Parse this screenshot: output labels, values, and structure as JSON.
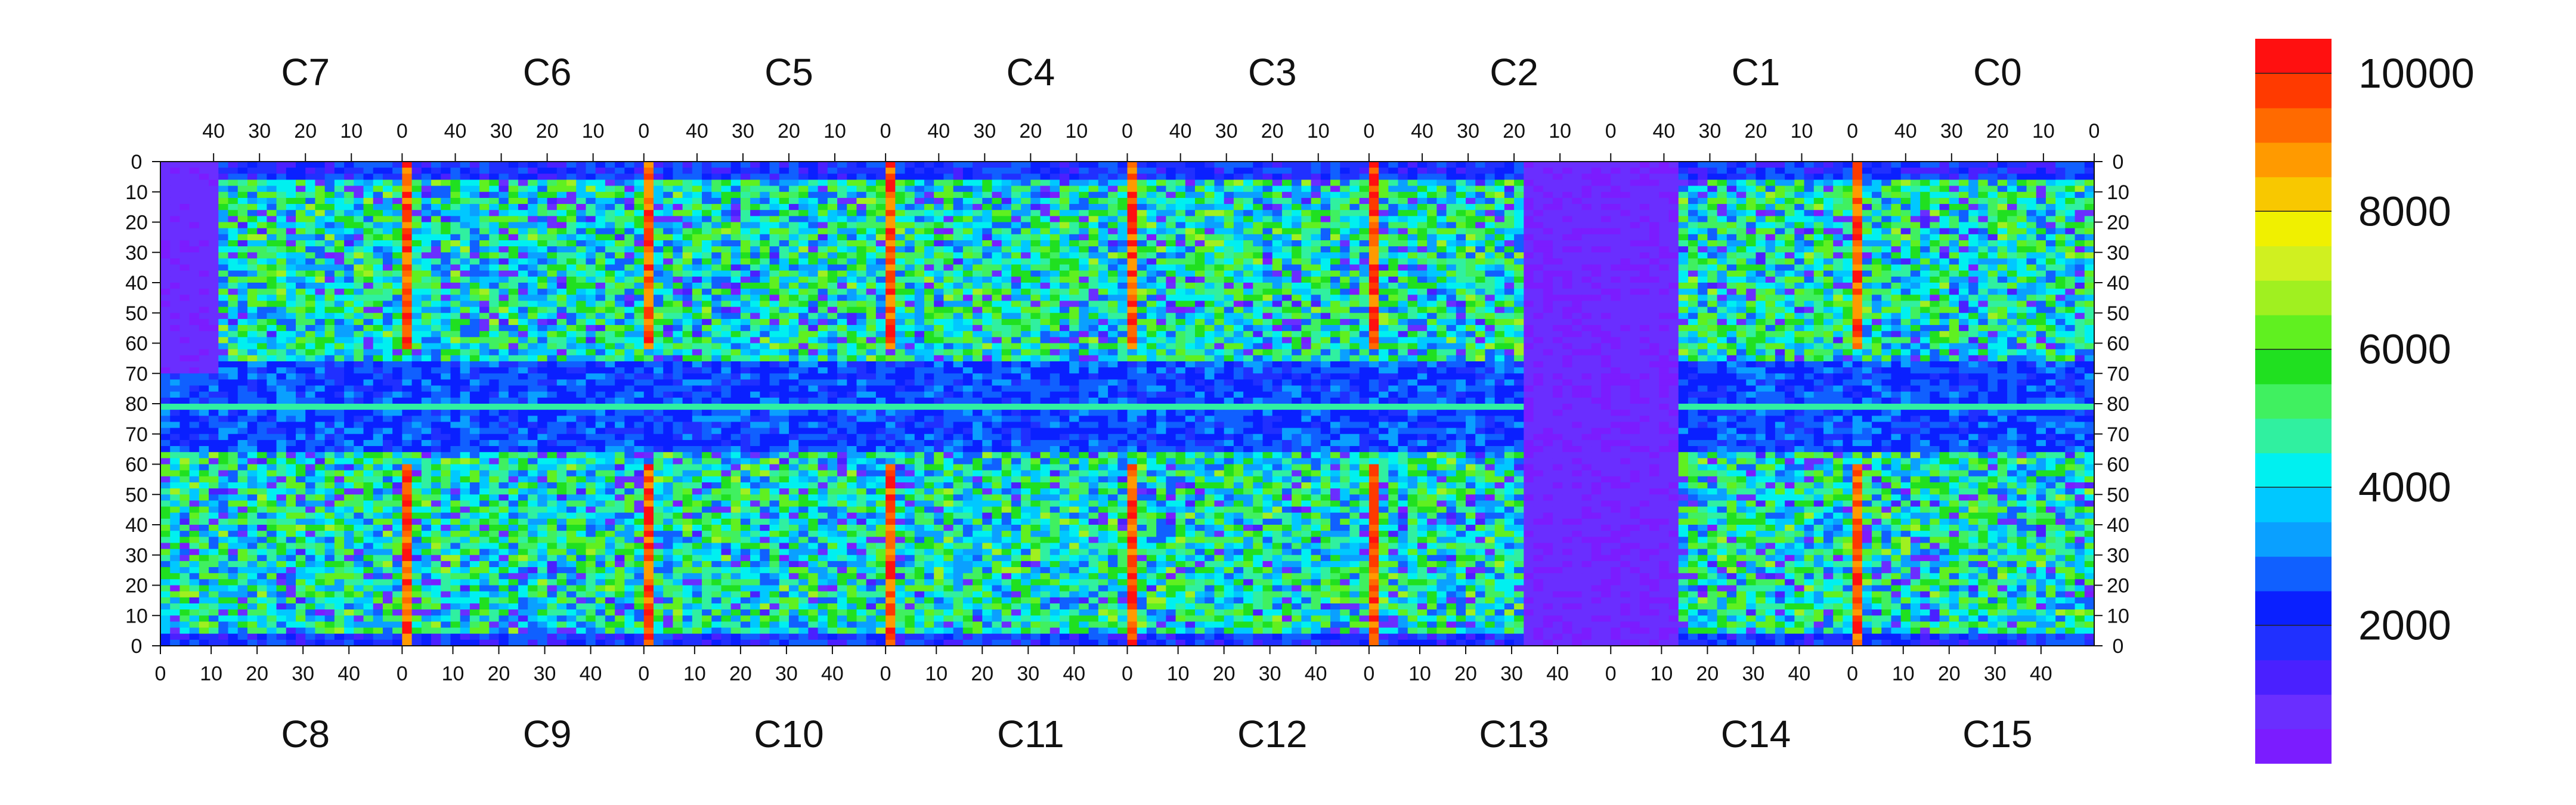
{
  "chart_data": {
    "type": "heatmap",
    "chips_top": [
      "C7",
      "C6",
      "C5",
      "C4",
      "C3",
      "C2",
      "C1",
      "C0"
    ],
    "chips_bottom": [
      "C8",
      "C9",
      "C10",
      "C11",
      "C12",
      "C13",
      "C14",
      "C15"
    ],
    "x_ticks_top": [
      "40",
      "30",
      "20",
      "10",
      "0"
    ],
    "x_ticks_bottom": [
      "0",
      "10",
      "20",
      "30",
      "40"
    ],
    "y_ticks_top_half": [
      "0",
      "10",
      "20",
      "30",
      "40",
      "50",
      "60",
      "70",
      "80"
    ],
    "y_ticks_bottom_half": [
      "70",
      "60",
      "50",
      "40",
      "30",
      "20",
      "10",
      "0"
    ],
    "colorbar": {
      "min": 0,
      "max": 10500,
      "tick_values": [
        2000,
        4000,
        6000,
        8000,
        10000
      ],
      "tick_labels": [
        "2000",
        "4000",
        "6000",
        "8000",
        "10000"
      ],
      "colors": [
        "#7b1cff",
        "#6a2eff",
        "#4a20ff",
        "#2030ff",
        "#0a20ff",
        "#1060ff",
        "#0aa0ff",
        "#00c8ff",
        "#00f0f0",
        "#30f0a0",
        "#40f060",
        "#20e020",
        "#60f020",
        "#a0f020",
        "#d0f020",
        "#f0f000",
        "#f8c800",
        "#ff9a00",
        "#ff6a00",
        "#ff3a00",
        "#ff1010"
      ]
    },
    "inactive_region_note": ""
  }
}
